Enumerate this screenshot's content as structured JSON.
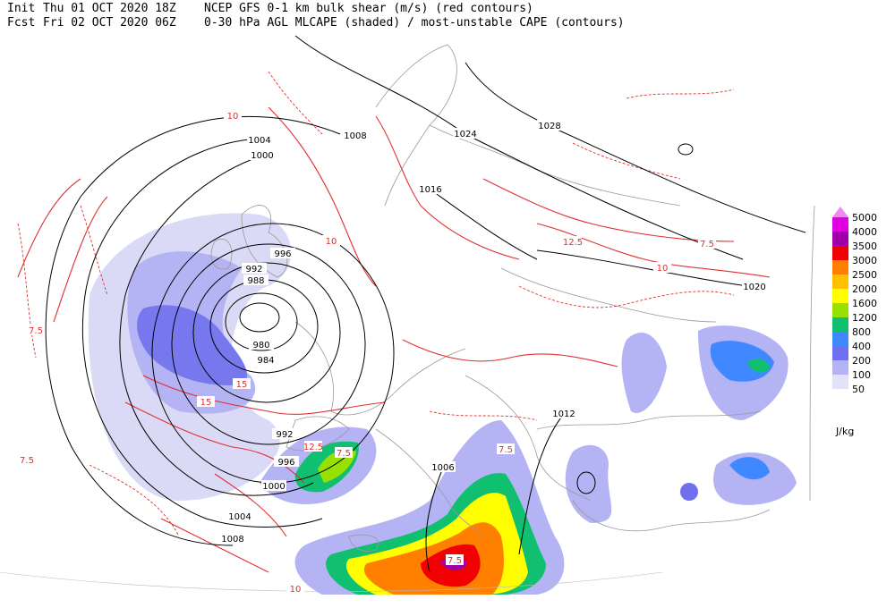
{
  "header": {
    "init_label": "Init",
    "init_time": "Thu 01 OCT 2020 18Z",
    "fcst_label": "Fcst",
    "fcst_time": "Fri 02 OCT 2020 06Z",
    "title": "NCEP GFS 0-1 km bulk shear (m/s) (red contours)",
    "subtitle": "0-30 hPa AGL MLCAPE (shaded) / most-unstable CAPE (contours)"
  },
  "isobar_labels": [
    "1004",
    "1000",
    "1008",
    "1024",
    "1028",
    "1016",
    "996",
    "992",
    "988",
    "980",
    "984",
    "992",
    "996",
    "1000",
    "1004",
    "1008",
    "1006",
    "1012",
    "1020"
  ],
  "shear_labels": [
    "7.5",
    "7.5",
    "7.5",
    "10",
    "10",
    "12.5",
    "15",
    "15",
    "7.5",
    "7.5",
    "10",
    "12.5",
    "7.5",
    "10"
  ],
  "legend": {
    "levels": [
      5000,
      4000,
      3500,
      3000,
      2500,
      2000,
      1600,
      1200,
      800,
      400,
      200,
      100,
      50
    ],
    "colors": [
      "#f088f0",
      "#e000e0",
      "#a000a8",
      "#f00000",
      "#ff8000",
      "#ffc000",
      "#ffff00",
      "#98e000",
      "#10c070",
      "#4088ff",
      "#7070ee",
      "#b4b4f4",
      "#e2e2f8"
    ],
    "unit": "J/kg"
  }
}
